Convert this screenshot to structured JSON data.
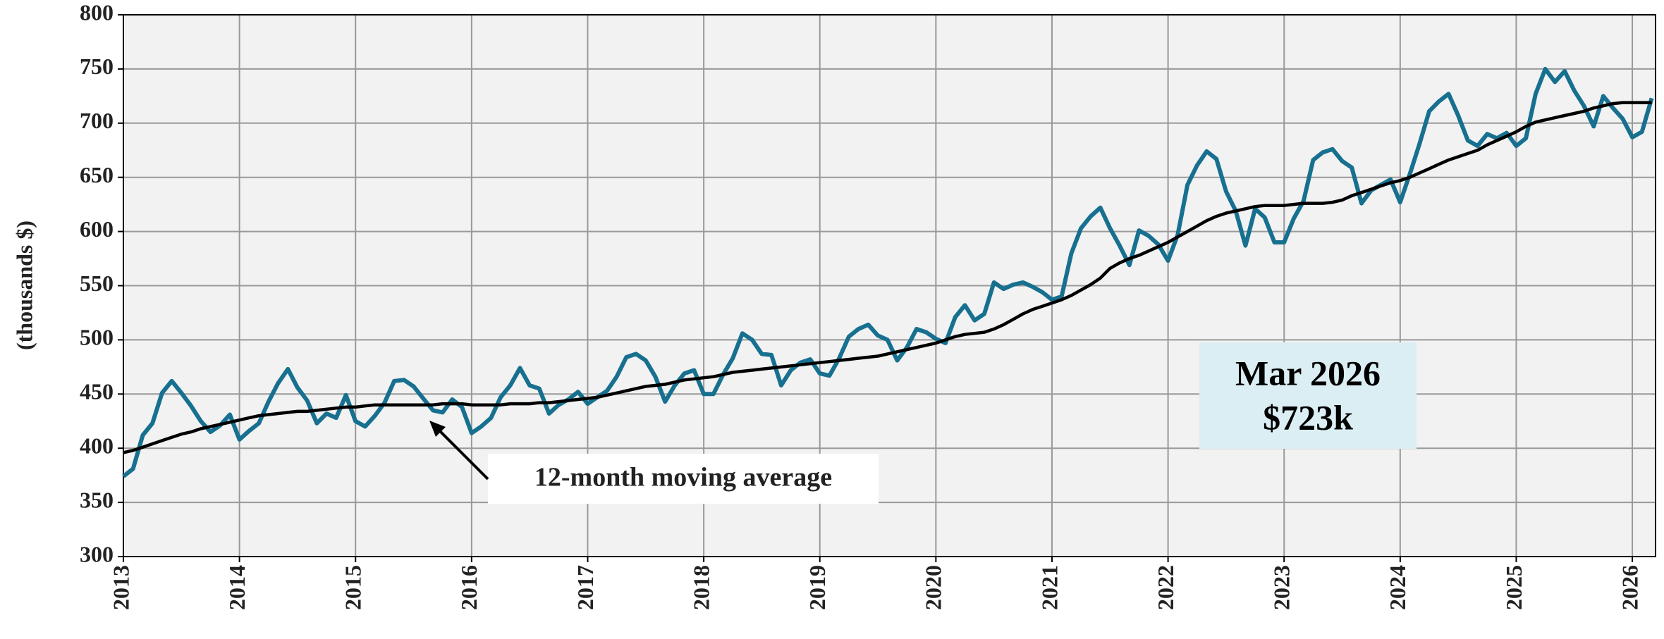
{
  "chart_data": {
    "type": "line",
    "y_label": "(thousands $)",
    "x": [
      2013,
      2013.083,
      2013.167,
      2013.25,
      2013.333,
      2013.417,
      2013.5,
      2013.583,
      2013.667,
      2013.75,
      2013.833,
      2013.917,
      2014,
      2014.083,
      2014.167,
      2014.25,
      2014.333,
      2014.417,
      2014.5,
      2014.583,
      2014.667,
      2014.75,
      2014.833,
      2014.917,
      2015,
      2015.083,
      2015.167,
      2015.25,
      2015.333,
      2015.417,
      2015.5,
      2015.583,
      2015.667,
      2015.75,
      2015.833,
      2015.917,
      2016,
      2016.083,
      2016.167,
      2016.25,
      2016.333,
      2016.417,
      2016.5,
      2016.583,
      2016.667,
      2016.75,
      2016.833,
      2016.917,
      2017,
      2017.083,
      2017.167,
      2017.25,
      2017.333,
      2017.417,
      2017.5,
      2017.583,
      2017.667,
      2017.75,
      2017.833,
      2017.917,
      2018,
      2018.083,
      2018.167,
      2018.25,
      2018.333,
      2018.417,
      2018.5,
      2018.583,
      2018.667,
      2018.75,
      2018.833,
      2018.917,
      2019,
      2019.083,
      2019.167,
      2019.25,
      2019.333,
      2019.417,
      2019.5,
      2019.583,
      2019.667,
      2019.75,
      2019.833,
      2019.917,
      2020,
      2020.083,
      2020.167,
      2020.25,
      2020.333,
      2020.417,
      2020.5,
      2020.583,
      2020.667,
      2020.75,
      2020.833,
      2020.917,
      2021,
      2021.083,
      2021.167,
      2021.25,
      2021.333,
      2021.417,
      2021.5,
      2021.583,
      2021.667,
      2021.75,
      2021.833,
      2021.917,
      2022,
      2022.083,
      2022.167,
      2022.25,
      2022.333,
      2022.417,
      2022.5,
      2022.583,
      2022.667,
      2022.75,
      2022.833,
      2022.917,
      2023,
      2023.083,
      2023.167,
      2023.25,
      2023.333,
      2023.417,
      2023.5,
      2023.583,
      2023.667,
      2023.75,
      2023.833,
      2023.917,
      2024,
      2024.083,
      2024.167,
      2024.25,
      2024.333,
      2024.417,
      2024.5,
      2024.583,
      2024.667,
      2024.75,
      2024.833,
      2024.917,
      2025,
      2025.083,
      2025.167,
      2025.25,
      2025.333,
      2025.417,
      2025.5,
      2025.583,
      2025.667,
      2025.75,
      2025.833,
      2025.917,
      2026,
      2026.083,
      2026.167
    ],
    "series": [
      {
        "color": "#17708f",
        "values": [
          374,
          381,
          412,
          423,
          451,
          462,
          451,
          439,
          425,
          415,
          421,
          431,
          408,
          416,
          423,
          443,
          460,
          473,
          456,
          444,
          423,
          432,
          428,
          449,
          425,
          420,
          430,
          442,
          462,
          463,
          457,
          446,
          435,
          433,
          445,
          438,
          414,
          420,
          428,
          447,
          458,
          474,
          458,
          455,
          432,
          440,
          445,
          452,
          441,
          447,
          453,
          466,
          484,
          487,
          481,
          466,
          443,
          458,
          469,
          472,
          450,
          450,
          468,
          483,
          506,
          500,
          487,
          486,
          458,
          472,
          479,
          482,
          469,
          467,
          483,
          503,
          510,
          514,
          504,
          500,
          481,
          493,
          510,
          507,
          501,
          497,
          521,
          532,
          518,
          524,
          553,
          547,
          551,
          553,
          549,
          544,
          537,
          540,
          580,
          603,
          614,
          622,
          603,
          587,
          569,
          601,
          596,
          588,
          573,
          597,
          643,
          661,
          674,
          667,
          637,
          619,
          587,
          621,
          613,
          590,
          590,
          612,
          628,
          666,
          673,
          676,
          665,
          659,
          626,
          638,
          643,
          648,
          627,
          653,
          681,
          711,
          720,
          727,
          707,
          684,
          679,
          690,
          686,
          691,
          679,
          686,
          727,
          750,
          738,
          748,
          730,
          716,
          697,
          725,
          714,
          704,
          687,
          692,
          723
        ]
      },
      {
        "color": "#000000",
        "values": [
          396,
          398,
          401,
          404,
          407,
          410,
          413,
          415,
          418,
          420,
          422,
          424,
          426,
          428,
          430,
          431,
          432,
          433,
          434,
          434,
          435,
          436,
          437,
          438,
          438,
          439,
          440,
          440,
          440,
          440,
          440,
          440,
          440,
          441,
          441,
          441,
          440,
          440,
          440,
          440,
          441,
          441,
          441,
          442,
          442,
          443,
          444,
          445,
          446,
          447,
          449,
          451,
          453,
          455,
          457,
          458,
          459,
          461,
          463,
          464,
          465,
          466,
          468,
          470,
          471,
          472,
          473,
          474,
          475,
          476,
          477,
          478,
          479,
          480,
          481,
          482,
          483,
          484,
          485,
          487,
          489,
          491,
          493,
          495,
          497,
          500,
          503,
          505,
          506,
          507,
          510,
          514,
          519,
          524,
          528,
          531,
          534,
          537,
          541,
          546,
          551,
          557,
          566,
          571,
          575,
          578,
          582,
          586,
          590,
          595,
          600,
          605,
          610,
          614,
          617,
          619,
          621,
          623,
          624,
          624,
          624,
          625,
          626,
          626,
          626,
          627,
          629,
          633,
          636,
          639,
          642,
          645,
          647,
          650,
          654,
          658,
          662,
          666,
          669,
          672,
          675,
          680,
          684,
          688,
          692,
          697,
          701,
          703,
          705,
          707,
          709,
          711,
          714,
          716,
          718,
          719,
          719,
          719,
          719
        ]
      }
    ],
    "annotations": [
      {
        "text": "12-month moving average"
      },
      {
        "text": "Mar 2026"
      },
      {
        "text": "$723k"
      }
    ],
    "xlim": [
      2013,
      2026.2
    ],
    "xticks": [
      2013,
      2014,
      2015,
      2016,
      2017,
      2018,
      2019,
      2020,
      2021,
      2022,
      2023,
      2024,
      2025,
      2026
    ],
    "ylim": [
      300,
      800
    ],
    "yticks": [
      300,
      350,
      400,
      450,
      500,
      550,
      600,
      650,
      700,
      750,
      800
    ],
    "grid": true
  }
}
